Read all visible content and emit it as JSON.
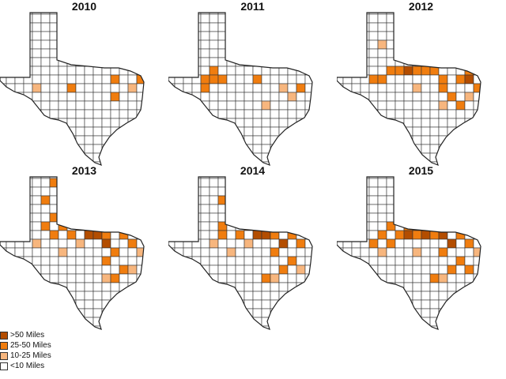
{
  "legend": [
    {
      "label": ">50 Miles",
      "color": "#b34d00"
    },
    {
      "label": "25-50 Miles",
      "color": "#f07d0f"
    },
    {
      "label": "10-25 Miles",
      "color": "#f7b67e"
    },
    {
      "label": "<10 Miles",
      "color": "#ffffff"
    }
  ],
  "maps": [
    {
      "year": "2010",
      "counties": {
        "mid": [
          [
            5,
            8
          ],
          [
            10,
            7
          ],
          [
            13,
            7
          ],
          [
            10,
            9
          ]
        ],
        "heavy": [],
        "light": [
          [
            1,
            8
          ],
          [
            12,
            8
          ]
        ]
      }
    },
    {
      "year": "2011",
      "counties": {
        "mid": [
          [
            1,
            7
          ],
          [
            2,
            6
          ],
          [
            2,
            7
          ],
          [
            3,
            7
          ],
          [
            1,
            8
          ],
          [
            7,
            7
          ],
          [
            12,
            8
          ]
        ],
        "heavy": [],
        "light": [
          [
            6,
            4
          ],
          [
            10,
            8
          ],
          [
            11,
            9
          ],
          [
            8,
            10
          ]
        ]
      }
    },
    {
      "year": "2012",
      "counties": {
        "mid": [
          [
            1,
            7
          ],
          [
            2,
            7
          ],
          [
            3,
            6
          ],
          [
            4,
            6
          ],
          [
            6,
            6
          ],
          [
            7,
            6
          ],
          [
            8,
            6
          ],
          [
            9,
            7
          ],
          [
            11,
            7
          ],
          [
            12,
            6
          ],
          [
            13,
            8
          ],
          [
            9,
            8
          ],
          [
            10,
            9
          ],
          [
            11,
            10
          ]
        ],
        "heavy": [
          [
            5,
            6
          ],
          [
            12,
            7
          ]
        ],
        "light": [
          [
            4,
            2
          ],
          [
            7,
            2
          ],
          [
            2,
            3
          ],
          [
            6,
            8
          ],
          [
            12,
            9
          ],
          [
            9,
            10
          ]
        ]
      }
    },
    {
      "year": "2013",
      "counties": {
        "mid": [
          [
            3,
            0
          ],
          [
            4,
            1
          ],
          [
            2,
            2
          ],
          [
            5,
            2
          ],
          [
            3,
            4
          ],
          [
            5,
            4
          ],
          [
            7,
            4
          ],
          [
            2,
            5
          ],
          [
            4,
            5
          ],
          [
            6,
            5
          ],
          [
            8,
            5
          ],
          [
            10,
            5
          ],
          [
            12,
            5
          ],
          [
            3,
            6
          ],
          [
            5,
            6
          ],
          [
            9,
            6
          ],
          [
            11,
            6
          ],
          [
            12,
            7
          ],
          [
            10,
            8
          ],
          [
            9,
            9
          ],
          [
            11,
            10
          ],
          [
            10,
            11
          ]
        ],
        "heavy": [
          [
            7,
            6
          ],
          [
            8,
            6
          ],
          [
            9,
            7
          ]
        ],
        "light": [
          [
            1,
            7
          ],
          [
            6,
            7
          ],
          [
            4,
            8
          ],
          [
            13,
            8
          ],
          [
            12,
            10
          ],
          [
            9,
            11
          ]
        ]
      }
    },
    {
      "year": "2014",
      "counties": {
        "mid": [
          [
            4,
            0
          ],
          [
            5,
            1
          ],
          [
            3,
            2
          ],
          [
            6,
            2
          ],
          [
            4,
            3
          ],
          [
            5,
            4
          ],
          [
            7,
            4
          ],
          [
            3,
            5
          ],
          [
            6,
            5
          ],
          [
            8,
            5
          ],
          [
            11,
            5
          ],
          [
            3,
            6
          ],
          [
            5,
            6
          ],
          [
            9,
            6
          ],
          [
            11,
            6
          ],
          [
            12,
            7
          ],
          [
            9,
            8
          ],
          [
            11,
            9
          ],
          [
            10,
            10
          ],
          [
            8,
            11
          ]
        ],
        "heavy": [
          [
            7,
            6
          ],
          [
            8,
            6
          ],
          [
            10,
            7
          ]
        ],
        "light": [
          [
            2,
            7
          ],
          [
            6,
            7
          ],
          [
            4,
            8
          ],
          [
            9,
            11
          ],
          [
            12,
            10
          ]
        ]
      }
    },
    {
      "year": "2015",
      "counties": {
        "mid": [
          [
            5,
            0
          ],
          [
            5,
            1
          ],
          [
            4,
            2
          ],
          [
            6,
            2
          ],
          [
            5,
            3
          ],
          [
            7,
            3
          ],
          [
            4,
            4
          ],
          [
            6,
            4
          ],
          [
            8,
            4
          ],
          [
            3,
            5
          ],
          [
            5,
            5
          ],
          [
            7,
            5
          ],
          [
            9,
            5
          ],
          [
            11,
            5
          ],
          [
            2,
            6
          ],
          [
            4,
            6
          ],
          [
            6,
            6
          ],
          [
            8,
            6
          ],
          [
            11,
            6
          ],
          [
            1,
            7
          ],
          [
            3,
            7
          ],
          [
            12,
            7
          ],
          [
            9,
            8
          ],
          [
            11,
            9
          ],
          [
            10,
            10
          ],
          [
            12,
            10
          ],
          [
            8,
            11
          ]
        ],
        "heavy": [
          [
            6,
            5
          ],
          [
            5,
            6
          ],
          [
            7,
            6
          ],
          [
            9,
            6
          ],
          [
            10,
            7
          ]
        ],
        "light": [
          [
            2,
            8
          ],
          [
            6,
            8
          ],
          [
            13,
            8
          ],
          [
            9,
            11
          ]
        ]
      }
    }
  ]
}
